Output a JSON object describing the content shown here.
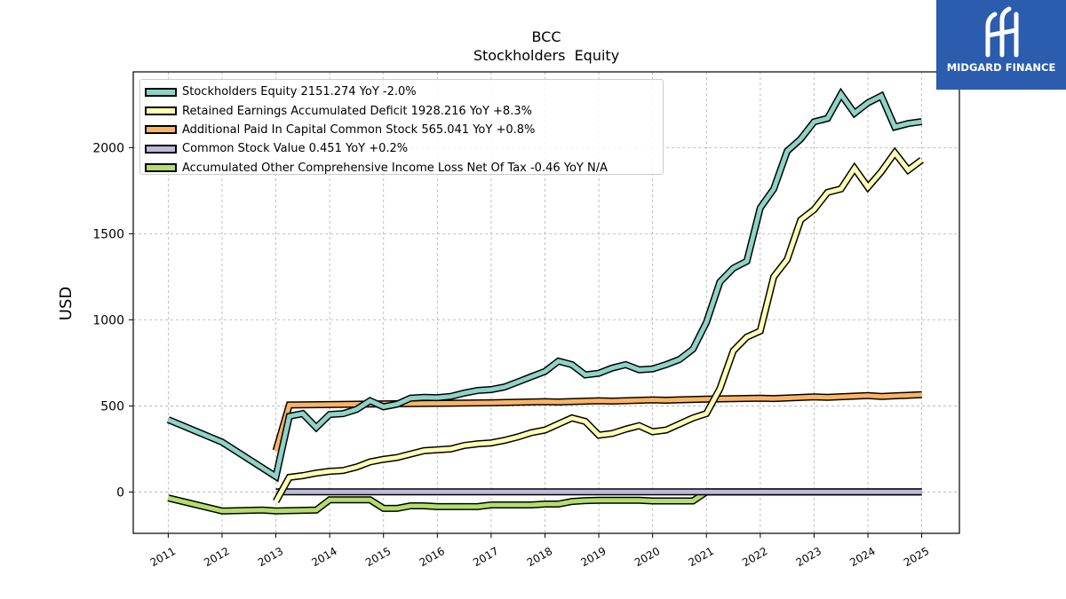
{
  "brand": {
    "name": "MIDGARD FINANCE",
    "bg_color": "#2b5cad"
  },
  "chart_data": {
    "type": "line",
    "title": "BCC",
    "subtitle": "Stockholders  Equity",
    "ylabel": "USD",
    "xlabel": "",
    "xlim": [
      2010.35,
      2025.7
    ],
    "ylim": [
      -240,
      2440
    ],
    "x_ticks": [
      "2011",
      "2012",
      "2013",
      "2014",
      "2015",
      "2016",
      "2017",
      "2018",
      "2019",
      "2020",
      "2021",
      "2022",
      "2023",
      "2024",
      "2025"
    ],
    "y_ticks": [
      0,
      500,
      1000,
      1500,
      2000
    ],
    "grid": true,
    "legend_position": "top-left",
    "series": [
      {
        "name": "Stockholders Equity  2151.274 YoY -2.0%",
        "color": "#8dd3c7",
        "x": [
          2011.0,
          2012.0,
          2013.0,
          2013.25,
          2013.5,
          2013.75,
          2014.0,
          2014.25,
          2014.5,
          2014.75,
          2015.0,
          2015.25,
          2015.5,
          2015.75,
          2016.0,
          2016.25,
          2016.5,
          2016.75,
          2017.0,
          2017.25,
          2017.5,
          2017.75,
          2018.0,
          2018.25,
          2018.5,
          2018.75,
          2019.0,
          2019.25,
          2019.5,
          2019.75,
          2020.0,
          2020.25,
          2020.5,
          2020.75,
          2021.0,
          2021.25,
          2021.5,
          2021.75,
          2022.0,
          2022.25,
          2022.5,
          2022.75,
          2023.0,
          2023.25,
          2023.5,
          2023.75,
          2024.0,
          2024.25,
          2024.5,
          2024.75,
          2025.0
        ],
        "y": [
          420,
          290,
          90,
          440,
          455,
          375,
          450,
          455,
          480,
          530,
          495,
          510,
          545,
          550,
          548,
          555,
          575,
          590,
          595,
          610,
          640,
          670,
          700,
          760,
          740,
          680,
          690,
          720,
          740,
          710,
          715,
          740,
          770,
          830,
          985,
          1220,
          1300,
          1340,
          1650,
          1760,
          1980,
          2050,
          2150,
          2170,
          2310,
          2200,
          2260,
          2300,
          2120,
          2140,
          2151
        ]
      },
      {
        "name": "Retained Earnings Accumulated Deficit  1928.216 YoY +8.3%",
        "color": "#ffffb3",
        "x": [
          2013.0,
          2013.25,
          2013.5,
          2013.75,
          2014.0,
          2014.25,
          2014.5,
          2014.75,
          2015.0,
          2015.25,
          2015.5,
          2015.75,
          2016.0,
          2016.25,
          2016.5,
          2016.75,
          2017.0,
          2017.25,
          2017.5,
          2017.75,
          2018.0,
          2018.25,
          2018.5,
          2018.75,
          2019.0,
          2019.25,
          2019.5,
          2019.75,
          2020.0,
          2020.25,
          2020.5,
          2020.75,
          2021.0,
          2021.25,
          2021.5,
          2021.75,
          2022.0,
          2022.25,
          2022.5,
          2022.75,
          2023.0,
          2023.25,
          2023.5,
          2023.75,
          2024.0,
          2024.25,
          2024.5,
          2024.75,
          2025.0
        ],
        "y": [
          -55,
          85,
          95,
          110,
          120,
          125,
          145,
          175,
          190,
          200,
          220,
          240,
          245,
          250,
          270,
          280,
          285,
          300,
          320,
          345,
          360,
          395,
          430,
          410,
          330,
          340,
          365,
          385,
          350,
          360,
          395,
          430,
          455,
          600,
          820,
          900,
          935,
          1250,
          1350,
          1580,
          1640,
          1740,
          1760,
          1880,
          1770,
          1860,
          1970,
          1870,
          1928
        ]
      },
      {
        "name": "Additional Paid In Capital Common Stock  565.041 YoY +0.8%",
        "color": "#fdb462",
        "x": [
          2013.0,
          2013.25,
          2014.0,
          2015.0,
          2016.0,
          2017.0,
          2018.0,
          2018.25,
          2019.0,
          2019.25,
          2020.0,
          2020.25,
          2021.0,
          2022.0,
          2022.25,
          2023.0,
          2023.25,
          2024.0,
          2024.25,
          2025.0
        ],
        "y": [
          240,
          505,
          508,
          512,
          515,
          518,
          525,
          523,
          530,
          528,
          535,
          533,
          540,
          545,
          543,
          552,
          550,
          560,
          555,
          565
        ]
      },
      {
        "name": "Common Stock Value  0.451 YoY +0.2%",
        "color": "#bebada",
        "x": [
          2013.0,
          2025.0
        ],
        "y": [
          0.45,
          0.451
        ]
      },
      {
        "name": "Accumulated Other Comprehensive Income Loss Net Of Tax  -0.46 YoY N/A",
        "color": "#b3de69",
        "x": [
          2011.0,
          2012.0,
          2012.75,
          2013.0,
          2013.75,
          2014.0,
          2014.75,
          2015.0,
          2015.25,
          2015.5,
          2015.75,
          2016.0,
          2016.75,
          2017.0,
          2017.75,
          2018.0,
          2018.25,
          2018.5,
          2018.75,
          2019.0,
          2019.75,
          2020.0,
          2020.75,
          2021.0,
          2025.0
        ],
        "y": [
          -35,
          -110,
          -105,
          -110,
          -105,
          -45,
          -45,
          -95,
          -95,
          -80,
          -80,
          -85,
          -85,
          -75,
          -75,
          -70,
          -70,
          -55,
          -50,
          -48,
          -48,
          -52,
          -52,
          0,
          0
        ]
      }
    ]
  }
}
